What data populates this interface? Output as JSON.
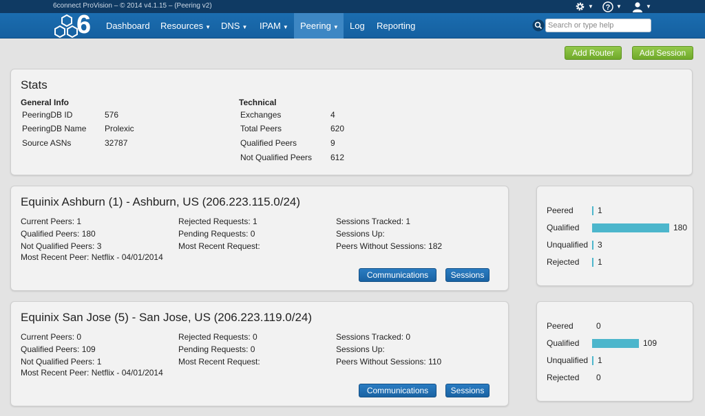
{
  "topbar": {
    "title": "6connect ProVision – © 2014 v4.1.15 – (Peering v2)",
    "settings_icon": "gear-icon",
    "help_icon": "question-circle-icon",
    "user_icon": "user-icon"
  },
  "nav": {
    "logo_text": "6",
    "items": [
      {
        "label": "Dashboard",
        "dropdown": false
      },
      {
        "label": "Resources",
        "dropdown": true
      },
      {
        "label": "DNS",
        "dropdown": true
      },
      {
        "label": "IPAM",
        "dropdown": true
      },
      {
        "label": "Peering",
        "dropdown": true,
        "active": true
      },
      {
        "label": "Log",
        "dropdown": false
      },
      {
        "label": "Reporting",
        "dropdown": false
      }
    ],
    "search_placeholder": "Search or type help"
  },
  "actions": {
    "add_router": "Add Router",
    "add_session": "Add Session"
  },
  "stats": {
    "title": "Stats",
    "general_heading": "General Info",
    "general": [
      {
        "label": "PeeringDB ID",
        "value": "576"
      },
      {
        "label": "PeeringDB Name",
        "value": "Prolexic"
      },
      {
        "label": "Source ASNs",
        "value": "32787"
      }
    ],
    "technical_heading": "Technical",
    "technical": [
      {
        "label": "Exchanges",
        "value": "4"
      },
      {
        "label": "Total Peers",
        "value": "620"
      },
      {
        "label": "Qualified Peers",
        "value": "9"
      },
      {
        "label": "Not Qualified Peers",
        "value": "612"
      }
    ]
  },
  "sites": [
    {
      "title": "Equinix Ashburn (1) - Ashburn, US (206.223.115.0/24)",
      "col1": [
        "Current Peers: 1",
        "Qualified Peers: 180",
        "Not Qualified Peers: 3",
        "Most Recent Peer: Netflix - 04/01/2014"
      ],
      "col2": [
        "Rejected Requests: 1",
        "Pending Requests: 0",
        "Most Recent Request:"
      ],
      "col3": [
        "Sessions Tracked: 1",
        "Sessions Up:",
        "Peers Without Sessions: 182"
      ],
      "communications_label": "Communications",
      "sessions_label": "Sessions",
      "chart": [
        {
          "label": "Peered",
          "value": 1
        },
        {
          "label": "Qualified",
          "value": 180
        },
        {
          "label": "Unqualified",
          "value": 3
        },
        {
          "label": "Rejected",
          "value": 1
        }
      ]
    },
    {
      "title": "Equinix San Jose (5) - San Jose, US (206.223.119.0/24)",
      "col1": [
        "Current Peers: 0",
        "Qualified Peers: 109",
        "Not Qualified Peers: 1",
        "Most Recent Peer: Netflix - 04/01/2014"
      ],
      "col2": [
        "Rejected Requests: 0",
        "Pending Requests: 0",
        "Most Recent Request:"
      ],
      "col3": [
        "Sessions Tracked: 0",
        "Sessions Up:",
        "Peers Without Sessions: 110"
      ],
      "communications_label": "Communications",
      "sessions_label": "Sessions",
      "chart": [
        {
          "label": "Peered",
          "value": 0
        },
        {
          "label": "Qualified",
          "value": 109
        },
        {
          "label": "Unqualified",
          "value": 1
        },
        {
          "label": "Rejected",
          "value": 0
        }
      ]
    }
  ],
  "colors": {
    "topbar": "#0f3a63",
    "nav": "#1560a0",
    "nav_active": "#3d87c4",
    "green_button": "#7ab636",
    "blue_button": "#1f6db0",
    "bar": "#4cb6cc"
  }
}
